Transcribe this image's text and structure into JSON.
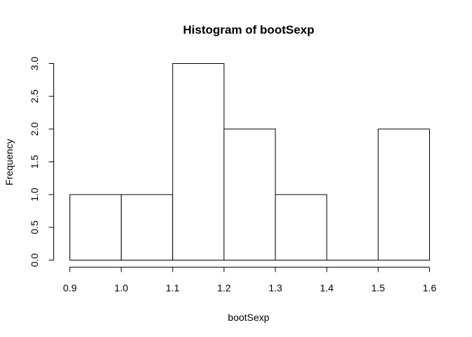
{
  "chart_data": {
    "type": "bar",
    "title": "Histogram of bootSexp",
    "xlabel": "bootSexp",
    "ylabel": "Frequency",
    "bins": [
      {
        "x0": 0.9,
        "x1": 1.0,
        "count": 1
      },
      {
        "x0": 1.0,
        "x1": 1.1,
        "count": 1
      },
      {
        "x0": 1.1,
        "x1": 1.2,
        "count": 3
      },
      {
        "x0": 1.2,
        "x1": 1.3,
        "count": 2
      },
      {
        "x0": 1.3,
        "x1": 1.4,
        "count": 1
      },
      {
        "x0": 1.4,
        "x1": 1.5,
        "count": 0
      },
      {
        "x0": 1.5,
        "x1": 1.6,
        "count": 2
      }
    ],
    "xticks": [
      "0.9",
      "1.0",
      "1.1",
      "1.2",
      "1.3",
      "1.4",
      "1.5",
      "1.6"
    ],
    "yticks": [
      "0.0",
      "0.5",
      "1.0",
      "1.5",
      "2.0",
      "2.5",
      "3.0"
    ],
    "xlim": [
      0.9,
      1.6
    ],
    "ylim": [
      0,
      3
    ],
    "grid": false,
    "colors": {
      "bar_fill": "#ffffff",
      "bar_stroke": "#000000"
    }
  }
}
